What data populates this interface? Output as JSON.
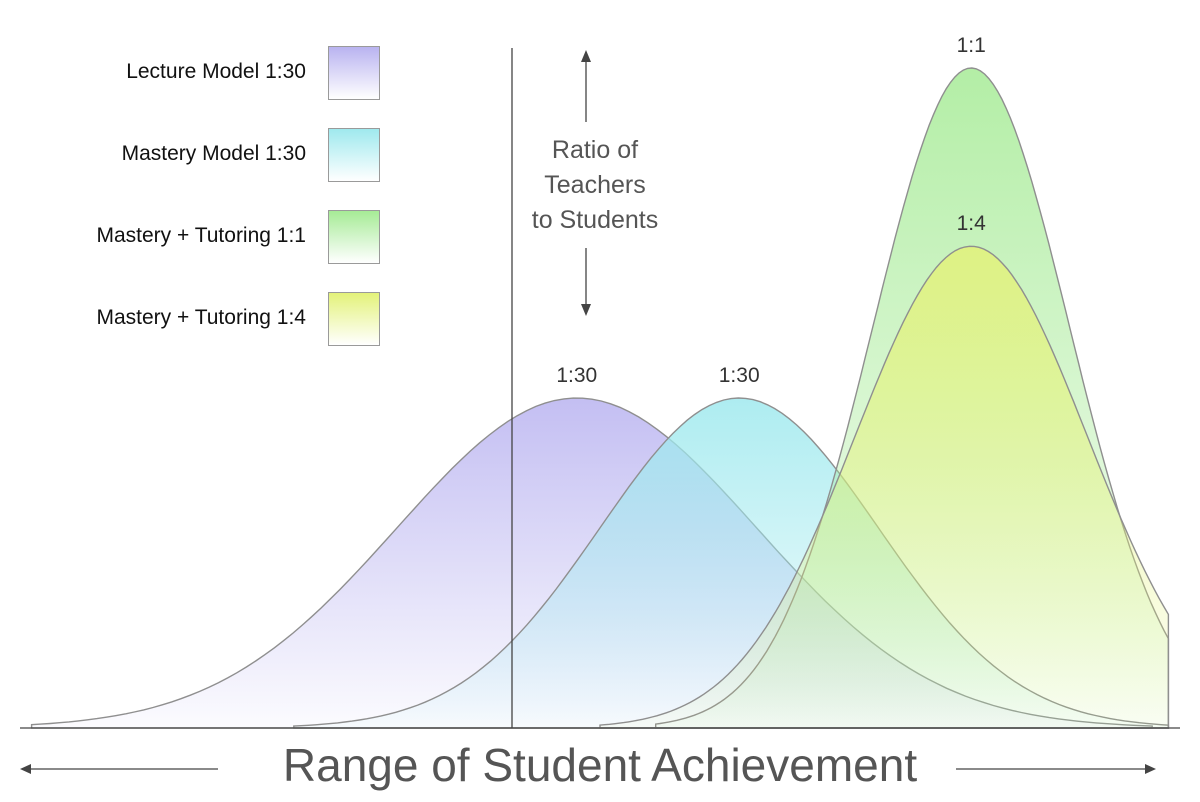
{
  "chart_data": {
    "type": "area",
    "xlabel": "Range of Student Achievement",
    "annotation": [
      "Ratio of",
      "Teachers",
      "to Students"
    ],
    "legend_placement": "top-left",
    "grid": false,
    "series": [
      {
        "name": "Lecture Model 1:30",
        "peak_label": "1:30",
        "color": "#b9b3f0",
        "mean": 0.48,
        "sd": 0.155,
        "peak": 0.5
      },
      {
        "name": "Mastery Model 1:30",
        "peak_label": "1:30",
        "color": "#9fe9ee",
        "mean": 0.62,
        "sd": 0.12,
        "peak": 0.5
      },
      {
        "name": "Mastery + Tutoring 1:1",
        "peak_label": "1:1",
        "color": "#a6eb96",
        "mean": 0.82,
        "sd": 0.085,
        "peak": 1.0
      },
      {
        "name": "Mastery + Tutoring 1:4",
        "peak_label": "1:4",
        "color": "#e3f27a",
        "mean": 0.82,
        "sd": 0.1,
        "peak": 0.73
      }
    ]
  }
}
